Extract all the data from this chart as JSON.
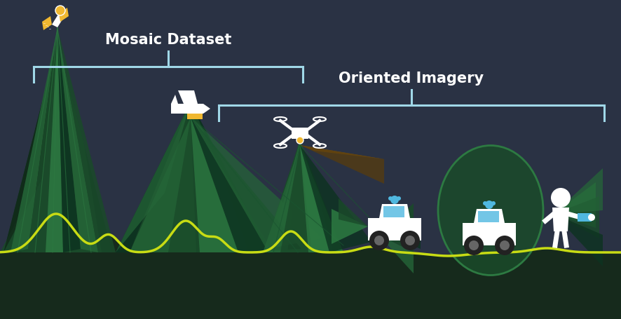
{
  "bg_color": "#2a3244",
  "gd1": "#0d3320",
  "gd2": "#1a4a2a",
  "gm1": "#256638",
  "gm2": "#2d7a42",
  "gl1": "#3a9050",
  "lime": "#c8dc14",
  "lb": "#a0d8e8",
  "white": "#ffffff",
  "yellow": "#f0b830",
  "brown": "#7a5518",
  "brown2": "#5a3d0a",
  "blue_accent": "#50b8e0",
  "dark_green_fill": "#162a1c",
  "title_mosaic": "Mosaic Dataset",
  "title_oriented": "Oriented Imagery"
}
